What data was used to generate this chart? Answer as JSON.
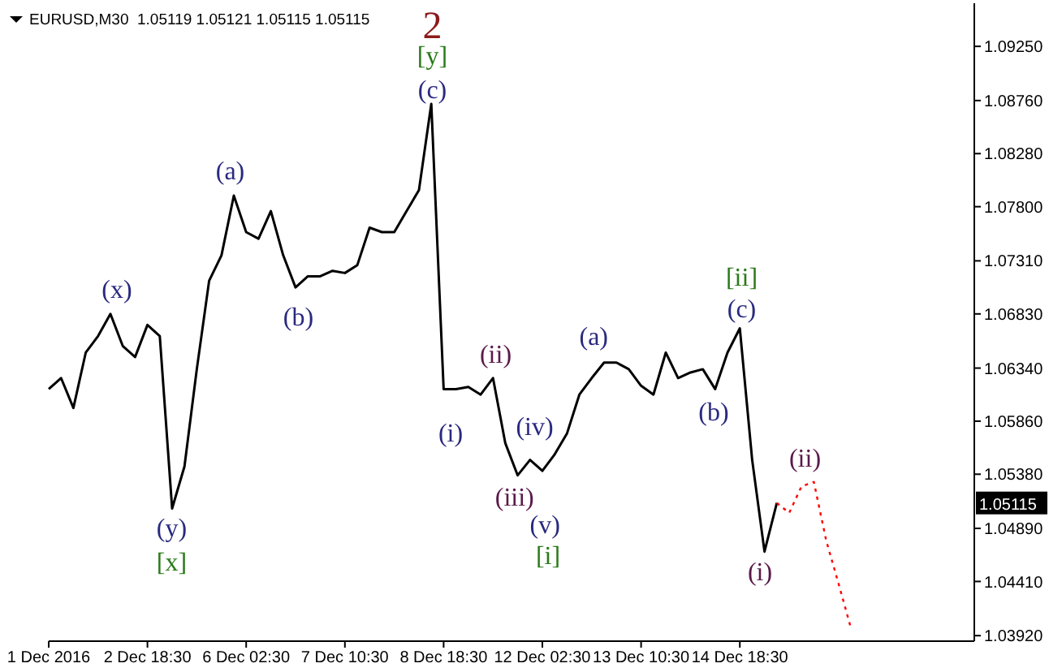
{
  "chart_data": {
    "type": "line",
    "title": "EURUSD,M30  1.05119 1.05121 1.05115 1.05115",
    "categories": [
      "1 Dec 2016",
      null,
      null,
      null,
      null,
      null,
      null,
      null,
      "2 Dec 18:30",
      null,
      null,
      null,
      null,
      null,
      null,
      null,
      "6 Dec 02:30",
      null,
      null,
      null,
      null,
      null,
      null,
      null,
      "7 Dec 10:30",
      null,
      null,
      null,
      null,
      null,
      null,
      null,
      "8 Dec 18:30",
      null,
      null,
      null,
      null,
      null,
      null,
      null,
      "12 Dec 02:30",
      null,
      null,
      null,
      null,
      null,
      null,
      null,
      "13 Dec 10:30",
      null,
      null,
      null,
      null,
      null,
      null,
      null,
      "14 Dec 18:30",
      null,
      null,
      null,
      null,
      null,
      null,
      null,
      null,
      null,
      null,
      null,
      null,
      null,
      null,
      null,
      null,
      null,
      null,
      null
    ],
    "series": [
      {
        "color": "#000000",
        "line_style": "solid",
        "values": [
          1.0615,
          1.0625,
          1.0598,
          1.0648,
          1.0663,
          1.0683,
          1.0654,
          1.0644,
          1.0673,
          1.0663,
          1.0507,
          1.0545,
          1.0633,
          1.0713,
          1.0736,
          1.079,
          1.0757,
          1.0751,
          1.0776,
          1.0736,
          1.0707,
          1.0717,
          1.0717,
          1.0722,
          1.072,
          1.0727,
          1.0761,
          1.0757,
          1.0757,
          1.0776,
          1.0795,
          1.0873,
          1.0615,
          1.0615,
          1.0617,
          1.061,
          1.0625,
          1.0566,
          1.0537,
          1.0551,
          1.0541,
          1.0556,
          1.0575,
          1.061,
          1.0625,
          1.0639,
          1.0639,
          1.0633,
          1.0618,
          1.061,
          1.0648,
          1.0625,
          1.063,
          1.0633,
          1.0615,
          1.0648,
          1.067,
          1.0551,
          1.0468,
          1.0512,
          null,
          null,
          null,
          null,
          null,
          null,
          null,
          null,
          null,
          null,
          null,
          null,
          null,
          null,
          null,
          null
        ]
      },
      {
        "color": "#ff0000",
        "line_style": "dotted",
        "values": [
          null,
          null,
          null,
          null,
          null,
          null,
          null,
          null,
          null,
          null,
          null,
          null,
          null,
          null,
          null,
          null,
          null,
          null,
          null,
          null,
          null,
          null,
          null,
          null,
          null,
          null,
          null,
          null,
          null,
          null,
          null,
          null,
          null,
          null,
          null,
          null,
          null,
          null,
          null,
          null,
          null,
          null,
          null,
          null,
          null,
          null,
          null,
          null,
          null,
          null,
          null,
          null,
          null,
          null,
          null,
          null,
          null,
          null,
          null,
          1.0512,
          1.0503,
          1.0527,
          1.0531,
          1.0478,
          1.0439,
          1.0399,
          null,
          null,
          null,
          null,
          null,
          null,
          null,
          null,
          null,
          null
        ]
      }
    ],
    "ylim": [
      1.0387,
      1.0964
    ],
    "yticks": [
      {
        "value": 1.0392,
        "label": "1.03920"
      },
      {
        "value": 1.0441,
        "label": "1.04410"
      },
      {
        "value": 1.0489,
        "label": "1.04890"
      },
      {
        "value": 1.0538,
        "label": "1.05380"
      },
      {
        "value": 1.0586,
        "label": "1.05860"
      },
      {
        "value": 1.0634,
        "label": "1.06340"
      },
      {
        "value": 1.0683,
        "label": "1.06830"
      },
      {
        "value": 1.0731,
        "label": "1.07310"
      },
      {
        "value": 1.078,
        "label": "1.07800"
      },
      {
        "value": 1.0828,
        "label": "1.08280"
      },
      {
        "value": 1.0876,
        "label": "1.08760"
      },
      {
        "value": 1.0925,
        "label": "1.09250"
      }
    ],
    "grid": false,
    "marker": "none",
    "annotations": [
      "2",
      "[y]",
      "(c)",
      "(a)",
      "(x)",
      "(b)",
      "(y)",
      "[x]",
      "(ii)",
      "(i)",
      "(iv)",
      "(iii)",
      "(v)",
      "[i]",
      "(a)",
      "(b)",
      "[ii]",
      "(c)",
      "(ii)",
      "(i)",
      "1.05115"
    ]
  }
}
